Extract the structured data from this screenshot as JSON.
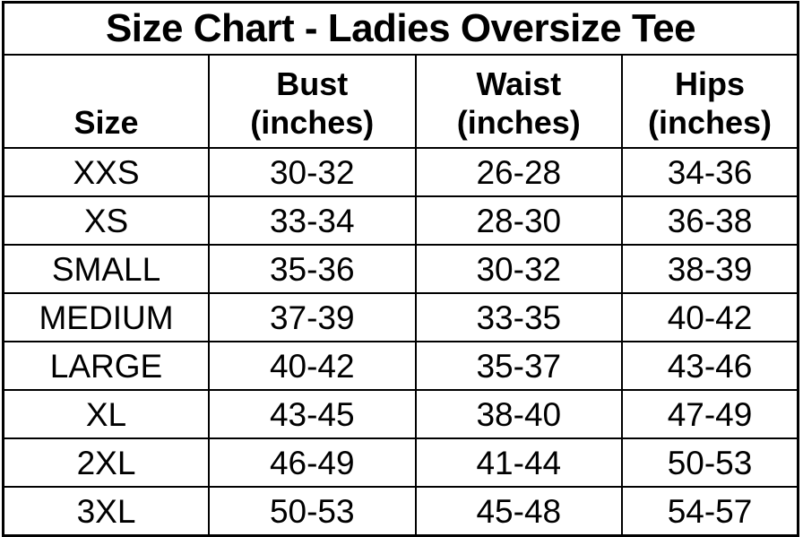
{
  "colors": {
    "background": "#ffffff",
    "border": "#000000",
    "text": "#000000"
  },
  "chart_data": {
    "type": "table",
    "title": "Size Chart - Ladies Oversize Tee",
    "columns": [
      {
        "label": "Size",
        "unit": ""
      },
      {
        "label": "Bust",
        "unit": "(inches)"
      },
      {
        "label": "Waist",
        "unit": "(inches)"
      },
      {
        "label": "Hips",
        "unit": "(inches)"
      }
    ],
    "rows": [
      {
        "size": "XXS",
        "bust": "30-32",
        "waist": "26-28",
        "hips": "34-36"
      },
      {
        "size": "XS",
        "bust": "33-34",
        "waist": "28-30",
        "hips": "36-38"
      },
      {
        "size": "SMALL",
        "bust": "35-36",
        "waist": "30-32",
        "hips": "38-39"
      },
      {
        "size": "MEDIUM",
        "bust": "37-39",
        "waist": "33-35",
        "hips": "40-42"
      },
      {
        "size": "LARGE",
        "bust": "40-42",
        "waist": "35-37",
        "hips": "43-46"
      },
      {
        "size": "XL",
        "bust": "43-45",
        "waist": "38-40",
        "hips": "47-49"
      },
      {
        "size": "2XL",
        "bust": "46-49",
        "waist": "41-44",
        "hips": "50-53"
      },
      {
        "size": "3XL",
        "bust": "50-53",
        "waist": "45-48",
        "hips": "54-57"
      }
    ]
  }
}
